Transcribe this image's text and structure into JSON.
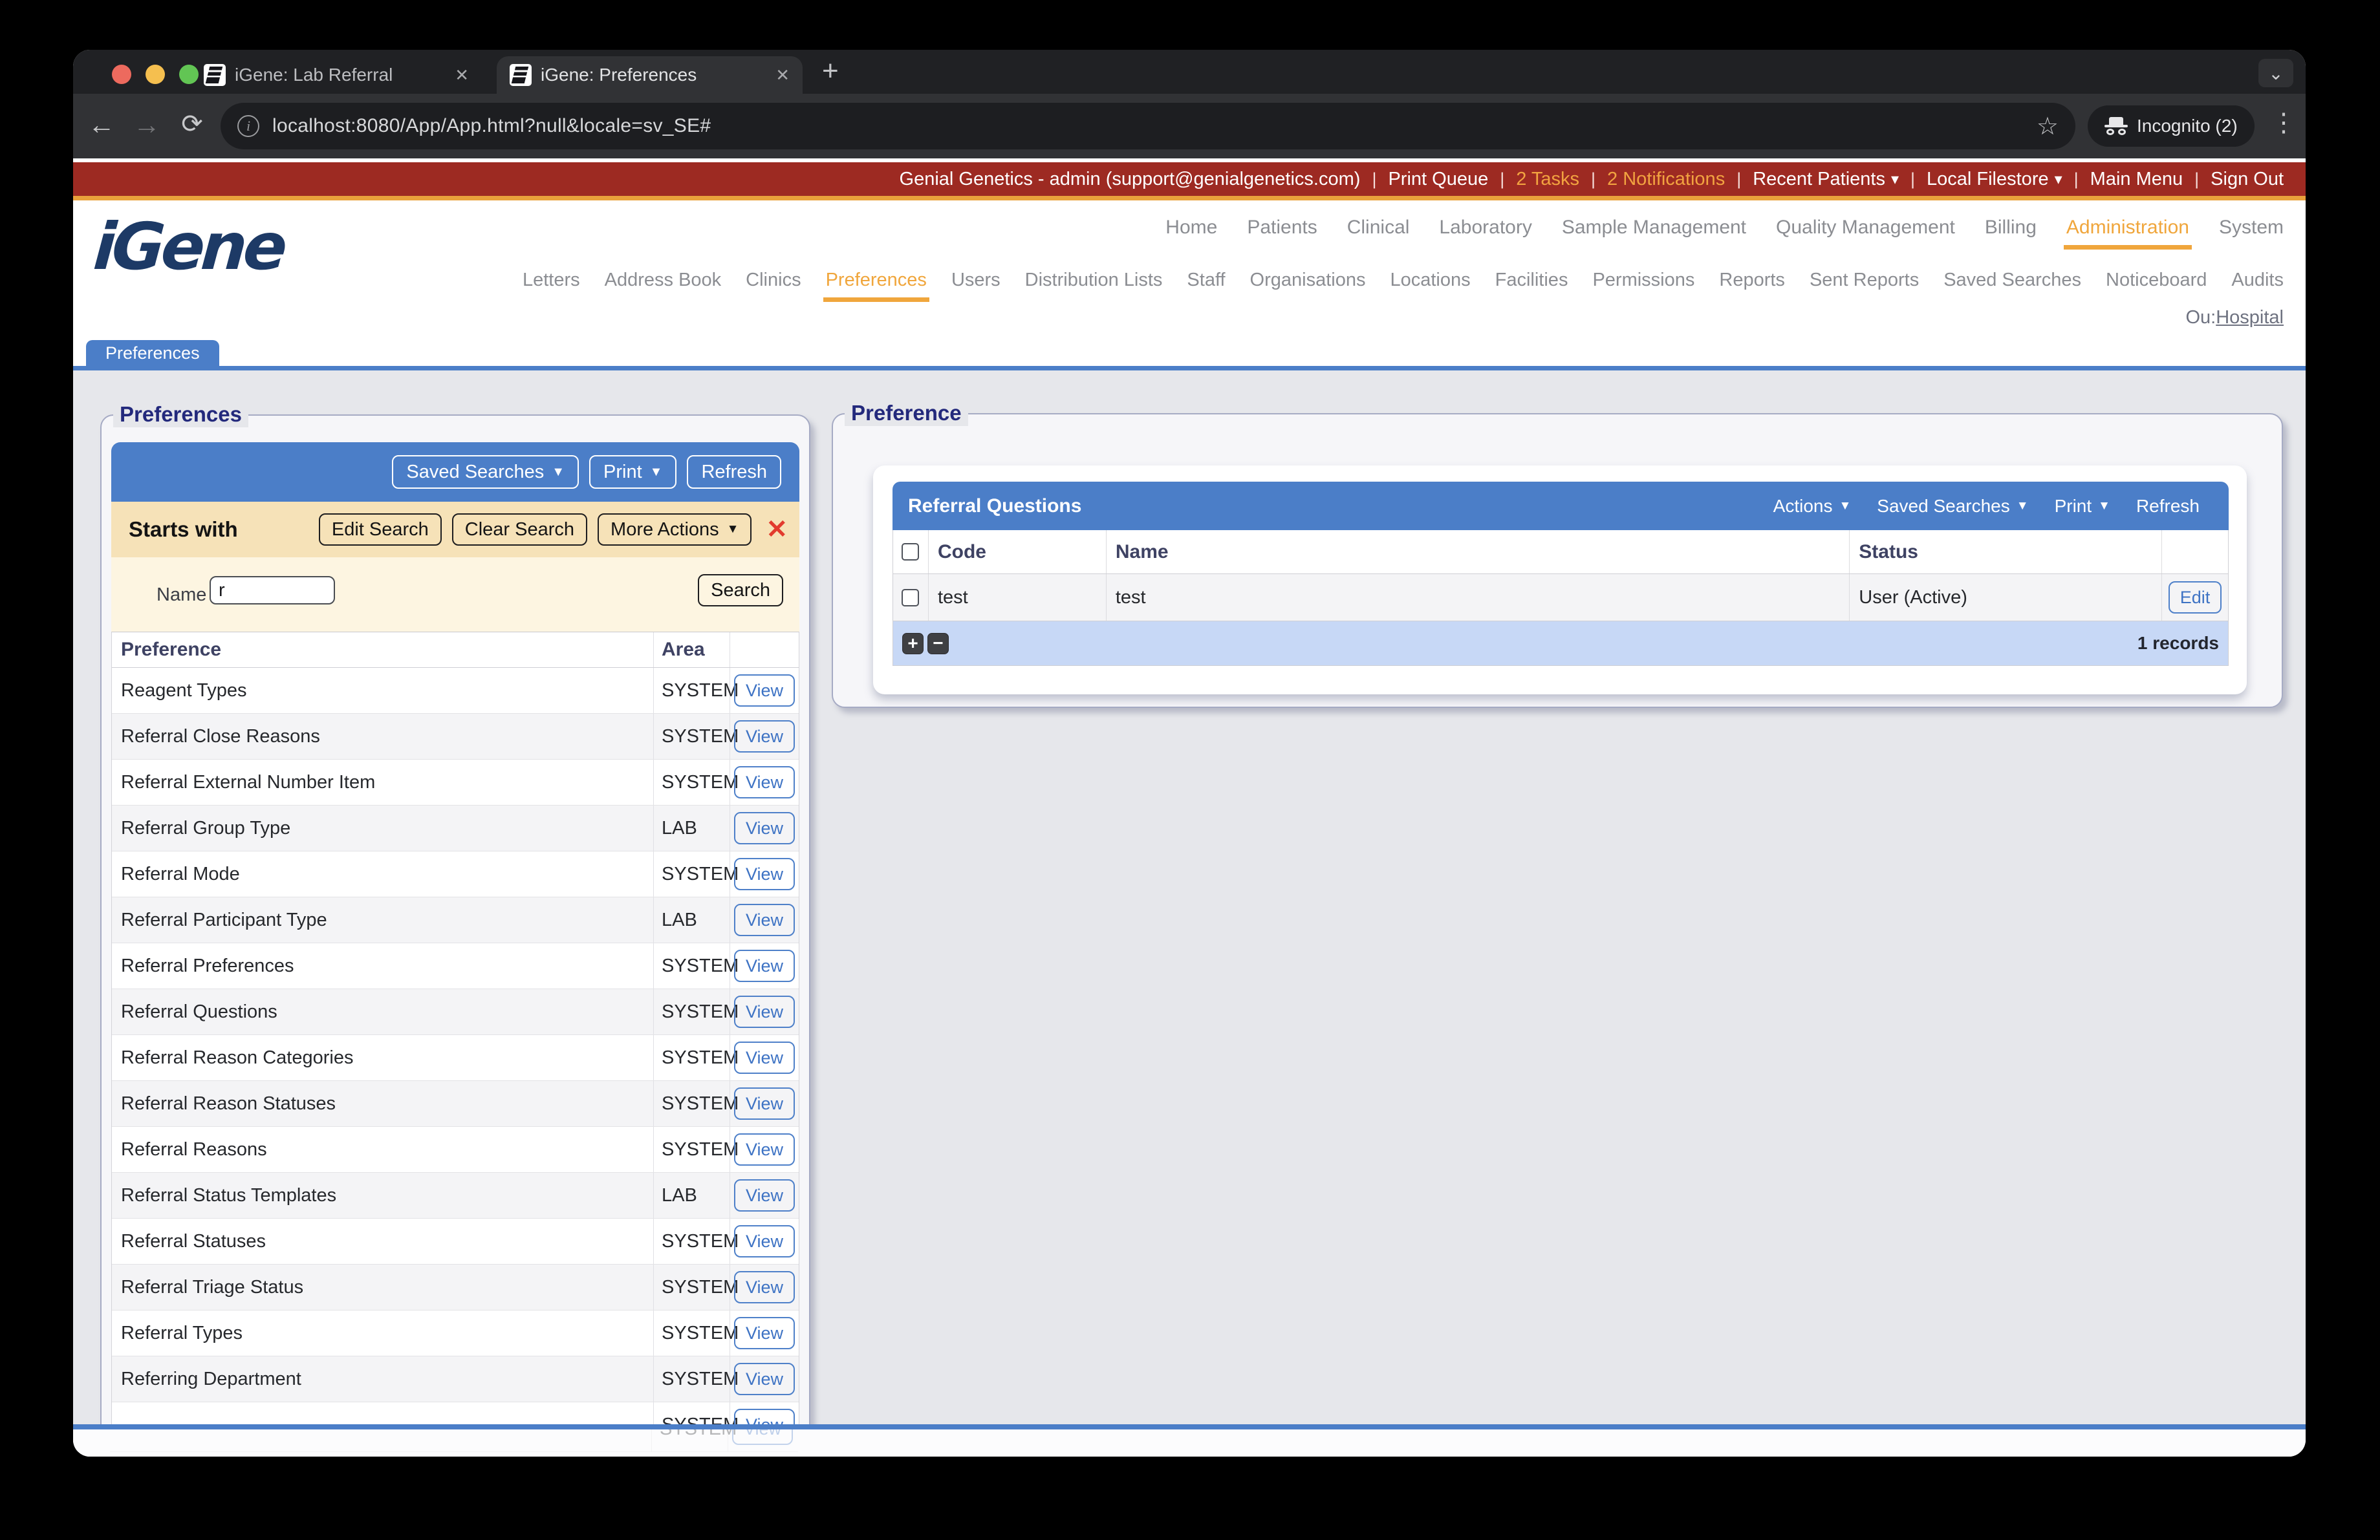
{
  "browser": {
    "tabs": [
      {
        "title": "iGene: Lab Referral",
        "state": "inactive"
      },
      {
        "title": "iGene: Preferences",
        "state": "active"
      }
    ],
    "new_tab": "+",
    "tab_search": "⌄",
    "url": "localhost:8080/App/App.html?null&locale=sv_SE#",
    "incognito_label": "Incognito (2)"
  },
  "masthead": {
    "account_text": "Genial Genetics - admin (support@genialgenetics.com)",
    "items": [
      {
        "label": "Print Queue"
      },
      {
        "label": "2 Tasks",
        "tone": "orange"
      },
      {
        "label": "2 Notifications",
        "tone": "orange"
      },
      {
        "label": "Recent Patients",
        "caret": "caret"
      },
      {
        "label": "Local Filestore",
        "caret": "caret"
      },
      {
        "label": "Main Menu"
      },
      {
        "label": "Sign Out"
      }
    ]
  },
  "logo_text": "iGene",
  "nav": {
    "primary": [
      {
        "label": "Home"
      },
      {
        "label": "Patients"
      },
      {
        "label": "Clinical"
      },
      {
        "label": "Laboratory"
      },
      {
        "label": "Sample Management"
      },
      {
        "label": "Quality Management"
      },
      {
        "label": "Billing"
      },
      {
        "label": "Administration",
        "state": "active"
      },
      {
        "label": "System"
      }
    ],
    "secondary": [
      {
        "label": "Letters"
      },
      {
        "label": "Address Book"
      },
      {
        "label": "Clinics"
      },
      {
        "label": "Preferences",
        "state": "active"
      },
      {
        "label": "Users"
      },
      {
        "label": "Distribution Lists"
      },
      {
        "label": "Staff"
      },
      {
        "label": "Organisations"
      },
      {
        "label": "Locations"
      },
      {
        "label": "Facilities"
      },
      {
        "label": "Permissions"
      },
      {
        "label": "Reports"
      },
      {
        "label": "Sent Reports"
      },
      {
        "label": "Saved Searches"
      },
      {
        "label": "Noticeboard"
      },
      {
        "label": "Audits"
      }
    ],
    "ou_prefix": "Ou:",
    "ou_link": "Hospital"
  },
  "page_tab": "Preferences",
  "left_panel": {
    "legend": "Preferences",
    "toolbar": {
      "saved_searches": "Saved Searches",
      "print": "Print",
      "refresh": "Refresh"
    },
    "filter": {
      "starts_with": "Starts with",
      "edit_search": "Edit Search",
      "clear_search": "Clear Search",
      "more_actions": "More Actions",
      "name_label": "Name",
      "name_value": "r",
      "search": "Search"
    },
    "table": {
      "col_preference": "Preference",
      "col_area": "Area",
      "view_label": "View",
      "rows": [
        {
          "name": "Reagent Types",
          "area": "SYSTEM"
        },
        {
          "name": "Referral Close Reasons",
          "area": "SYSTEM"
        },
        {
          "name": "Referral External Number Item",
          "area": "SYSTEM"
        },
        {
          "name": "Referral Group Type",
          "area": "LAB"
        },
        {
          "name": "Referral Mode",
          "area": "SYSTEM"
        },
        {
          "name": "Referral Participant Type",
          "area": "LAB"
        },
        {
          "name": "Referral Preferences",
          "area": "SYSTEM"
        },
        {
          "name": "Referral Questions",
          "area": "SYSTEM"
        },
        {
          "name": "Referral Reason Categories",
          "area": "SYSTEM"
        },
        {
          "name": "Referral Reason Statuses",
          "area": "SYSTEM"
        },
        {
          "name": "Referral Reasons",
          "area": "SYSTEM"
        },
        {
          "name": "Referral Status Templates",
          "area": "LAB"
        },
        {
          "name": "Referral Statuses",
          "area": "SYSTEM"
        },
        {
          "name": "Referral Triage Status",
          "area": "SYSTEM"
        },
        {
          "name": "Referral Types",
          "area": "SYSTEM"
        },
        {
          "name": "Referring Department",
          "area": "SYSTEM"
        },
        {
          "name": "",
          "area": "SYSTEM"
        }
      ],
      "ghost_area": "SYSTEM"
    }
  },
  "right_panel": {
    "legend": "Preference",
    "header": {
      "title": "Referral Questions",
      "actions": "Actions",
      "saved_searches": "Saved Searches",
      "print": "Print",
      "refresh": "Refresh"
    },
    "table": {
      "col_code": "Code",
      "col_name": "Name",
      "col_status": "Status",
      "rows": [
        {
          "code": "test",
          "name": "test",
          "status": "User (Active)"
        }
      ],
      "edit_label": "Edit",
      "records": "1 records"
    }
  }
}
